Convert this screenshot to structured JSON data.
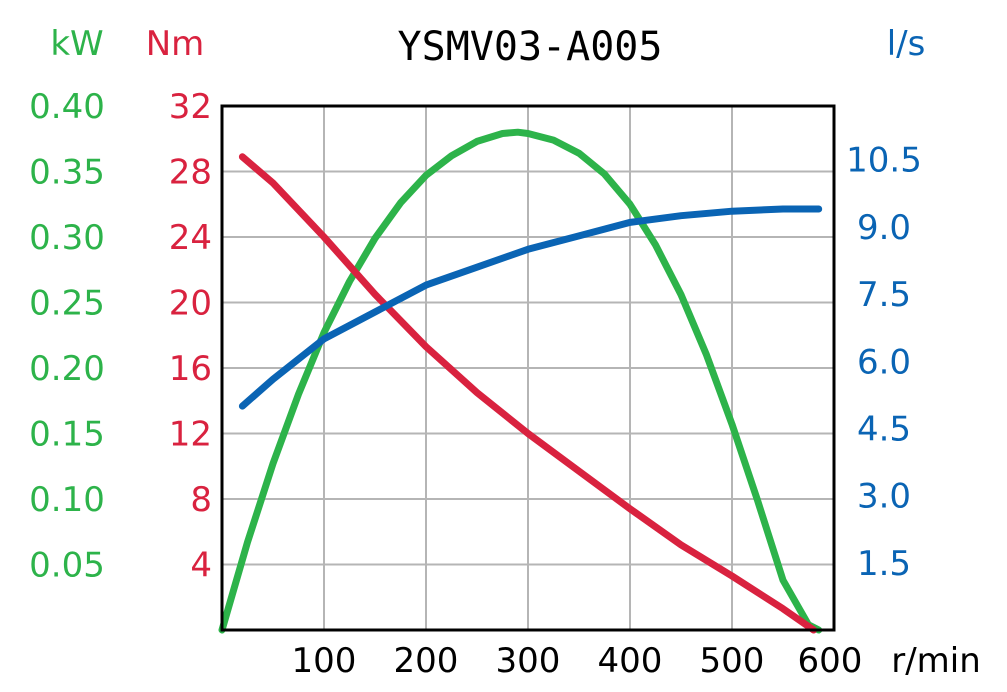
{
  "chart_data": {
    "type": "line",
    "title": "YSMV03-A005",
    "xlabel": "r/min",
    "xlim": [
      0,
      600
    ],
    "x_ticks": [
      "100",
      "200",
      "300",
      "400",
      "500",
      "600"
    ],
    "x_tick_values": [
      100,
      200,
      300,
      400,
      500,
      600
    ],
    "grid": true,
    "axes": {
      "kw": {
        "label": "kW",
        "color": "#2db34a",
        "range": [
          0,
          0.4
        ],
        "ticks": [
          "0.40",
          "0.35",
          "0.30",
          "0.25",
          "0.20",
          "0.15",
          "0.10",
          "0.05"
        ],
        "tick_values": [
          0.4,
          0.35,
          0.3,
          0.25,
          0.2,
          0.15,
          0.1,
          0.05
        ]
      },
      "nm": {
        "label": "Nm",
        "color": "#d9223f",
        "range": [
          0,
          32
        ],
        "ticks": [
          "32",
          "28",
          "24",
          "20",
          "16",
          "12",
          "8",
          "4"
        ],
        "tick_values": [
          32,
          28,
          24,
          20,
          16,
          12,
          8,
          4
        ]
      },
      "ls": {
        "label": "l/s",
        "color": "#0a64b4",
        "range": [
          0,
          11.7
        ],
        "ticks": [
          "10.5",
          "9.0",
          "7.5",
          "6.0",
          "4.5",
          "3.0",
          "1.5"
        ],
        "tick_values": [
          10.5,
          9.0,
          7.5,
          6.0,
          4.5,
          3.0,
          1.5
        ]
      }
    },
    "series": [
      {
        "axis": "kw",
        "color": "#2db34a",
        "x": [
          0,
          25,
          50,
          75,
          100,
          125,
          150,
          175,
          200,
          225,
          250,
          275,
          290,
          300,
          325,
          350,
          375,
          400,
          425,
          450,
          475,
          500,
          525,
          550,
          575,
          585
        ],
        "y": [
          0.0,
          0.067,
          0.127,
          0.18,
          0.227,
          0.266,
          0.299,
          0.326,
          0.347,
          0.362,
          0.373,
          0.379,
          0.38,
          0.379,
          0.374,
          0.364,
          0.348,
          0.325,
          0.294,
          0.256,
          0.21,
          0.157,
          0.099,
          0.038,
          0.004,
          0.0
        ]
      },
      {
        "axis": "nm",
        "color": "#d9223f",
        "x": [
          20,
          50,
          100,
          150,
          200,
          250,
          300,
          350,
          400,
          450,
          500,
          550,
          580
        ],
        "y": [
          28.9,
          27.3,
          24.0,
          20.5,
          17.3,
          14.5,
          12.0,
          9.7,
          7.4,
          5.2,
          3.3,
          1.3,
          0.0
        ]
      },
      {
        "axis": "ls",
        "color": "#0a64b4",
        "x": [
          20,
          50,
          100,
          150,
          200,
          250,
          300,
          350,
          400,
          450,
          500,
          550,
          585
        ],
        "y": [
          5.0,
          5.6,
          6.5,
          7.1,
          7.7,
          8.1,
          8.5,
          8.8,
          9.1,
          9.25,
          9.35,
          9.4,
          9.4
        ]
      }
    ]
  }
}
